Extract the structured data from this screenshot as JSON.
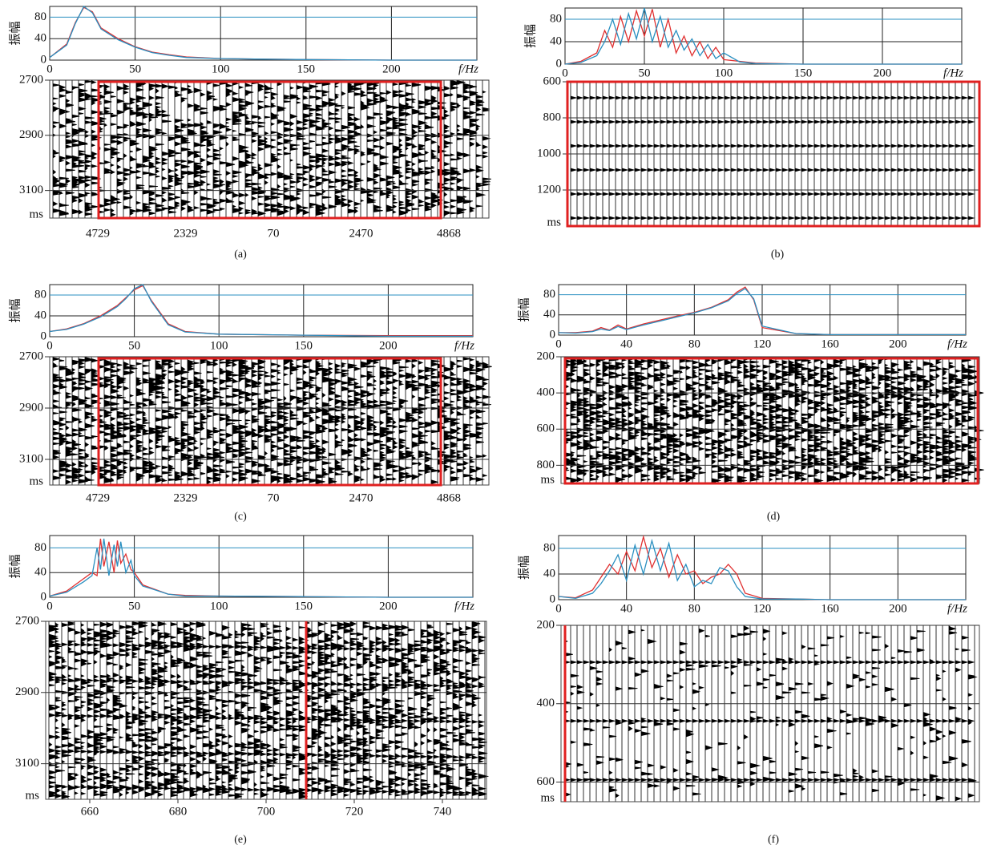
{
  "chart_data": [
    {
      "type": "line",
      "caption": "(a)",
      "spectrum": {
        "ylabel": "振幅",
        "xlabel": "f/Hz",
        "xlim": [
          0,
          250
        ],
        "xticks": [
          0,
          50,
          100,
          150,
          200
        ],
        "ylim": [
          0,
          100
        ],
        "yticks": [
          0,
          40,
          80
        ],
        "x": [
          0,
          10,
          15,
          20,
          25,
          30,
          40,
          50,
          60,
          70,
          80,
          100,
          120,
          150,
          200,
          250
        ],
        "series": [
          {
            "color": "#e03030",
            "values": [
              5,
              30,
              70,
              98,
              90,
              60,
              40,
              25,
              15,
              10,
              6,
              3,
              2,
              1,
              0,
              0
            ]
          },
          {
            "color": "#2a8fc0",
            "values": [
              5,
              28,
              68,
              100,
              88,
              58,
              38,
              24,
              14,
              9,
              5,
              3,
              2,
              1,
              0,
              0
            ]
          }
        ]
      },
      "section": {
        "ylim": [
          2700,
          3200
        ],
        "yticks": [
          2700,
          2900,
          3100
        ],
        "unit": "ms",
        "categories": [
          "4729",
          "2329",
          "70",
          "2470",
          "4868"
        ]
      }
    },
    {
      "type": "line",
      "caption": "(b)",
      "spectrum": {
        "ylabel": "振幅",
        "xlabel": "f/Hz",
        "xlim": [
          0,
          250
        ],
        "xticks": [
          0,
          50,
          100,
          150,
          200
        ],
        "ylim": [
          0,
          100
        ],
        "yticks": [
          0,
          40,
          80
        ],
        "x": [
          0,
          10,
          20,
          25,
          30,
          35,
          40,
          45,
          50,
          55,
          60,
          65,
          70,
          75,
          80,
          85,
          90,
          95,
          100,
          110,
          120,
          150,
          200,
          250
        ],
        "series": [
          {
            "color": "#e03030",
            "values": [
              0,
              5,
              20,
              60,
              30,
              85,
              40,
              95,
              50,
              98,
              30,
              80,
              20,
              50,
              15,
              40,
              10,
              30,
              8,
              5,
              2,
              0,
              0,
              0
            ]
          },
          {
            "color": "#2a8fc0",
            "values": [
              0,
              3,
              15,
              40,
              80,
              35,
              90,
              45,
              100,
              40,
              85,
              30,
              60,
              25,
              45,
              15,
              35,
              10,
              20,
              4,
              1,
              0,
              0,
              0
            ]
          }
        ]
      },
      "section": {
        "ylim": [
          600,
          1400
        ],
        "yticks": [
          600,
          800,
          1000,
          1200
        ],
        "unit": "ms"
      }
    },
    {
      "type": "line",
      "caption": "(c)",
      "spectrum": {
        "ylabel": "振幅",
        "xlabel": "f/Hz",
        "xlim": [
          0,
          250
        ],
        "xticks": [
          0,
          50,
          100,
          150,
          200
        ],
        "ylim": [
          0,
          100
        ],
        "yticks": [
          0,
          40,
          80
        ],
        "x": [
          0,
          10,
          20,
          30,
          40,
          45,
          50,
          55,
          60,
          70,
          80,
          100,
          150,
          200,
          250
        ],
        "series": [
          {
            "color": "#e03030",
            "values": [
              10,
              15,
              25,
              40,
              60,
              75,
              90,
              98,
              70,
              25,
              10,
              5,
              3,
              2,
              2
            ]
          },
          {
            "color": "#2a8fc0",
            "values": [
              10,
              14,
              24,
              38,
              58,
              73,
              92,
              100,
              68,
              23,
              9,
              5,
              3,
              1,
              1
            ]
          }
        ]
      },
      "section": {
        "ylim": [
          2700,
          3200
        ],
        "yticks": [
          2700,
          2900,
          3100
        ],
        "unit": "ms",
        "categories": [
          "4729",
          "2329",
          "70",
          "2470",
          "4868"
        ]
      }
    },
    {
      "type": "line",
      "caption": "(d)",
      "spectrum": {
        "ylabel": "振幅",
        "xlabel": "f/Hz",
        "xlim": [
          0,
          240
        ],
        "xticks": [
          0,
          40,
          80,
          120,
          160,
          200
        ],
        "ylim": [
          0,
          100
        ],
        "yticks": [
          0,
          40,
          80
        ],
        "x": [
          0,
          10,
          20,
          25,
          30,
          35,
          40,
          50,
          60,
          70,
          80,
          90,
          100,
          105,
          110,
          115,
          120,
          140,
          160,
          200,
          240
        ],
        "series": [
          {
            "color": "#e03030",
            "values": [
              5,
              5,
              8,
              15,
              10,
              20,
              12,
              22,
              30,
              38,
              45,
              55,
              70,
              85,
              95,
              70,
              15,
              3,
              1,
              1,
              1
            ]
          },
          {
            "color": "#2a8fc0",
            "values": [
              5,
              4,
              7,
              12,
              9,
              17,
              11,
              20,
              28,
              36,
              44,
              54,
              68,
              82,
              92,
              72,
              18,
              3,
              1,
              1,
              1
            ]
          }
        ]
      },
      "section": {
        "ylim": [
          200,
          900
        ],
        "yticks": [
          200,
          400,
          600,
          800
        ],
        "unit": "ms"
      }
    },
    {
      "type": "line",
      "caption": "(e)",
      "spectrum": {
        "ylabel": "振幅",
        "xlabel": "f/Hz",
        "xlim": [
          0,
          250
        ],
        "xticks": [
          0,
          50,
          100,
          150,
          200
        ],
        "ylim": [
          0,
          100
        ],
        "yticks": [
          0,
          40,
          80
        ],
        "x": [
          0,
          10,
          20,
          25,
          28,
          30,
          32,
          35,
          38,
          40,
          42,
          45,
          48,
          50,
          55,
          60,
          70,
          80,
          100,
          150,
          200,
          250
        ],
        "series": [
          {
            "color": "#e03030",
            "values": [
              2,
              10,
              30,
              40,
              35,
              95,
              50,
              90,
              40,
              92,
              55,
              70,
              45,
              40,
              20,
              15,
              5,
              3,
              2,
              1,
              0,
              0
            ]
          },
          {
            "color": "#2a8fc0",
            "values": [
              2,
              8,
              25,
              35,
              80,
              45,
              95,
              35,
              85,
              50,
              90,
              40,
              60,
              35,
              18,
              14,
              5,
              2,
              2,
              1,
              0,
              0
            ]
          }
        ]
      },
      "section": {
        "ylim": [
          2700,
          3200
        ],
        "yticks": [
          2700,
          2900,
          3100
        ],
        "unit": "ms",
        "xlim": [
          650,
          750
        ],
        "xticks": [
          660,
          680,
          700,
          720,
          740
        ]
      }
    },
    {
      "type": "line",
      "caption": "(f)",
      "spectrum": {
        "ylabel": "振幅",
        "xlabel": "f/Hz",
        "xlim": [
          0,
          240
        ],
        "xticks": [
          0,
          40,
          80,
          120,
          160,
          200
        ],
        "ylim": [
          0,
          100
        ],
        "yticks": [
          0,
          40,
          80
        ],
        "x": [
          0,
          10,
          20,
          25,
          30,
          35,
          40,
          45,
          50,
          55,
          60,
          65,
          70,
          75,
          80,
          85,
          90,
          95,
          100,
          105,
          110,
          120,
          140,
          160,
          200,
          240
        ],
        "series": [
          {
            "color": "#e03030",
            "values": [
              5,
              3,
              15,
              35,
              55,
              40,
              75,
              45,
              98,
              50,
              80,
              35,
              70,
              40,
              45,
              25,
              35,
              40,
              55,
              40,
              10,
              2,
              1,
              0,
              0,
              0
            ]
          },
          {
            "color": "#2a8fc0",
            "values": [
              5,
              2,
              10,
              25,
              45,
              70,
              30,
              85,
              40,
              92,
              45,
              88,
              30,
              55,
              20,
              30,
              25,
              50,
              45,
              20,
              5,
              1,
              1,
              0,
              0,
              0
            ]
          }
        ]
      },
      "section": {
        "ylim": [
          200,
          650
        ],
        "yticks": [
          200,
          400,
          600
        ],
        "unit": "ms"
      }
    }
  ]
}
